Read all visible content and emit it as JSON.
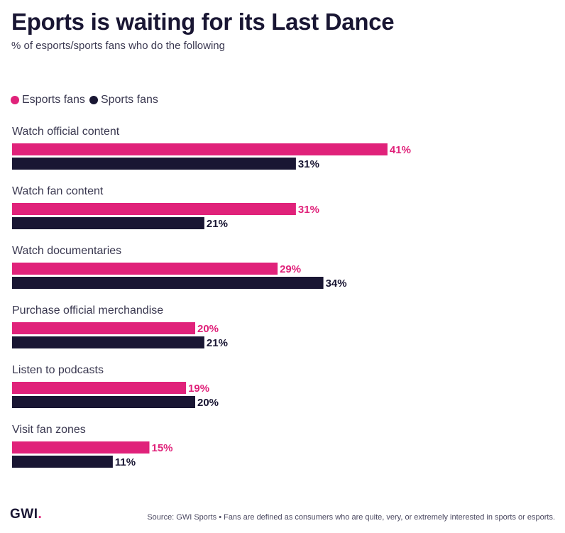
{
  "title": "Eports is waiting for its Last Dance",
  "subtitle": "% of esports/sports fans who do the following",
  "colors": {
    "esports": "#e0227a",
    "sports": "#191633",
    "text": "#191633"
  },
  "chart_data": {
    "type": "bar",
    "orientation": "horizontal",
    "categories": [
      "Watch official content",
      "Watch fan content",
      "Watch documentaries",
      "Purchase official merchandise",
      "Listen to podcasts",
      "Visit fan zones"
    ],
    "series": [
      {
        "name": "Esports fans",
        "color": "#e0227a",
        "values": [
          41,
          31,
          29,
          20,
          19,
          15
        ]
      },
      {
        "name": "Sports fans",
        "color": "#191633",
        "values": [
          31,
          21,
          34,
          21,
          20,
          11
        ]
      }
    ],
    "value_suffix": "%",
    "legend_position": "top-left",
    "grid": false,
    "xlim": [
      0,
      100
    ]
  },
  "footer": {
    "logo": "GWI",
    "logo_dot": ".",
    "source": "Source: GWI Sports • Fans are defined as consumers who are quite, very, or extremely interested in sports or esports."
  }
}
